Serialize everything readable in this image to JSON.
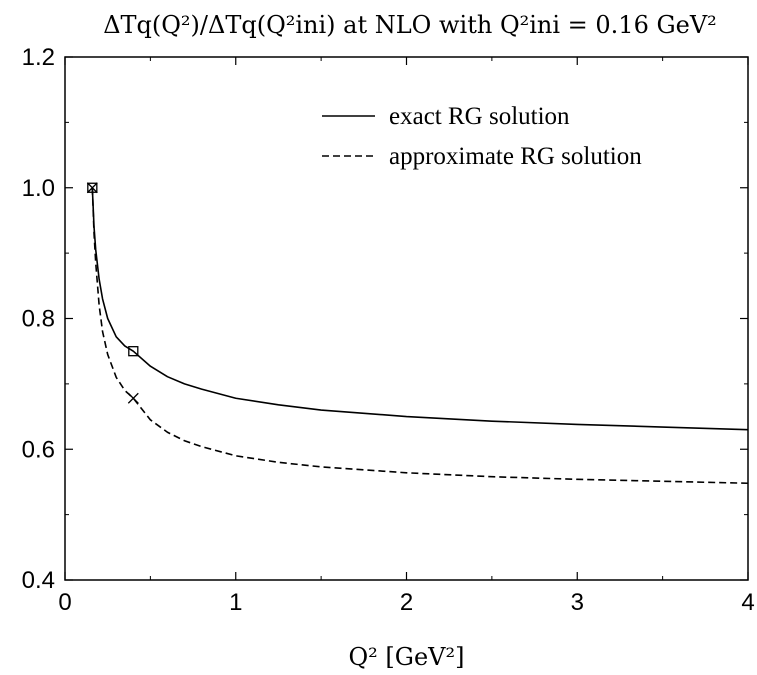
{
  "chart_data": {
    "type": "line",
    "title": "ΔTq(Q²)/ΔTq(Q²ini) at NLO with Q²ini = 0.16 GeV²",
    "xlabel": "Q² [GeV²]",
    "ylabel": "",
    "xlim": [
      0,
      4
    ],
    "ylim": [
      0.4,
      1.2
    ],
    "x_ticks": [
      0,
      1,
      2,
      3,
      4
    ],
    "x_tick_labels": [
      "0",
      "1",
      "2",
      "3",
      "4"
    ],
    "y_ticks": [
      0.4,
      0.6,
      0.8,
      1.0,
      1.2
    ],
    "y_tick_labels": [
      "0.4",
      "0.6",
      "0.8",
      "1.0",
      "1.2"
    ],
    "grid": false,
    "legend_position": "top-right",
    "series": [
      {
        "name": "exact RG solution",
        "style": "solid",
        "color": "#000000",
        "x": [
          0.16,
          0.17,
          0.18,
          0.2,
          0.22,
          0.25,
          0.3,
          0.35,
          0.4,
          0.5,
          0.6,
          0.7,
          0.8,
          1.0,
          1.25,
          1.5,
          2.0,
          2.5,
          3.0,
          3.5,
          4.0
        ],
        "y": [
          1.0,
          0.94,
          0.905,
          0.86,
          0.83,
          0.8,
          0.772,
          0.758,
          0.75,
          0.727,
          0.711,
          0.7,
          0.692,
          0.678,
          0.668,
          0.66,
          0.65,
          0.643,
          0.638,
          0.634,
          0.63
        ]
      },
      {
        "name": "approximate RG solution",
        "style": "dashed",
        "color": "#000000",
        "x": [
          0.16,
          0.17,
          0.18,
          0.2,
          0.22,
          0.25,
          0.3,
          0.35,
          0.4,
          0.5,
          0.6,
          0.7,
          0.8,
          1.0,
          1.25,
          1.5,
          2.0,
          2.5,
          3.0,
          3.5,
          4.0
        ],
        "y": [
          1.0,
          0.93,
          0.885,
          0.82,
          0.78,
          0.745,
          0.71,
          0.69,
          0.678,
          0.645,
          0.626,
          0.613,
          0.604,
          0.59,
          0.58,
          0.573,
          0.564,
          0.558,
          0.554,
          0.551,
          0.548
        ]
      }
    ],
    "markers": [
      {
        "shape": "square",
        "x": 0.16,
        "y": 1.0
      },
      {
        "shape": "cross",
        "x": 0.16,
        "y": 1.0
      },
      {
        "shape": "square",
        "x": 0.4,
        "y": 0.75
      },
      {
        "shape": "cross",
        "x": 0.4,
        "y": 0.678
      }
    ]
  }
}
